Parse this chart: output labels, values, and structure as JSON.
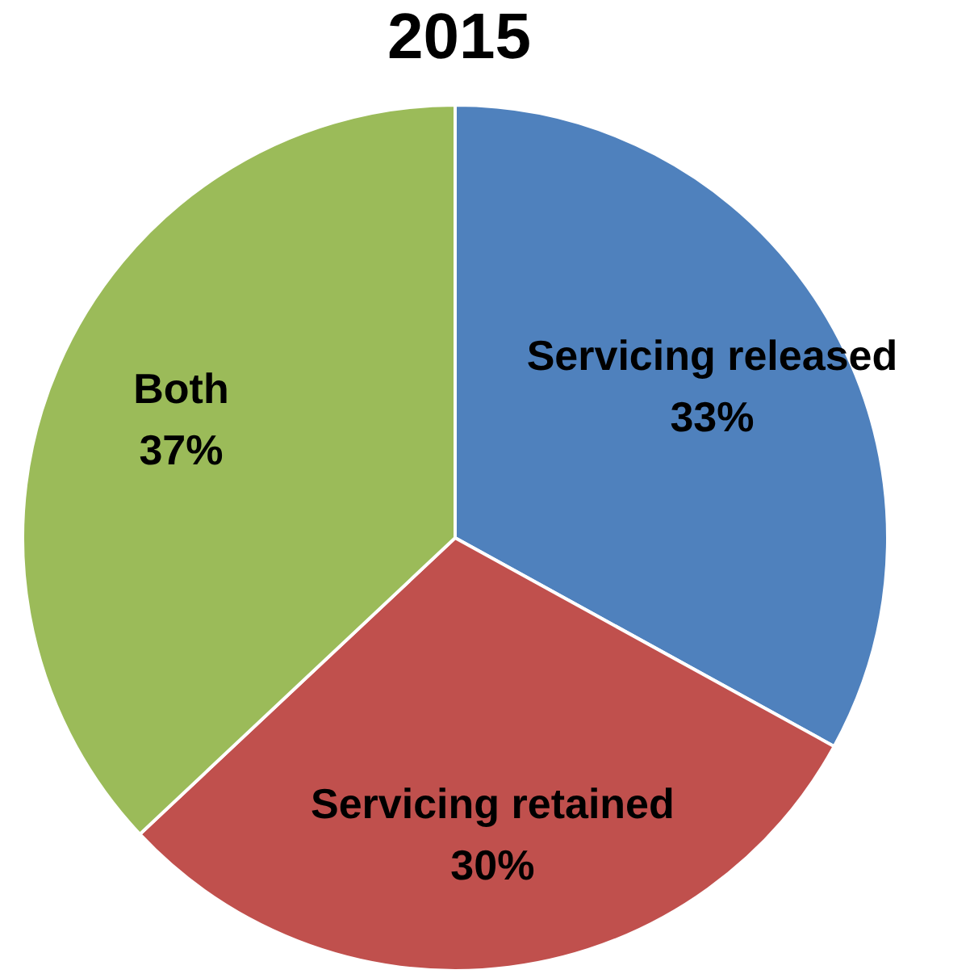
{
  "chart_data": {
    "type": "pie",
    "title": "2015",
    "categories": [
      "Servicing released",
      "Servicing retained",
      "Both"
    ],
    "values": [
      33,
      30,
      37
    ],
    "value_labels": [
      "33%",
      "30%",
      "37%"
    ],
    "colors": [
      "#4f81bd",
      "#c0504d",
      "#9bbb59"
    ]
  }
}
